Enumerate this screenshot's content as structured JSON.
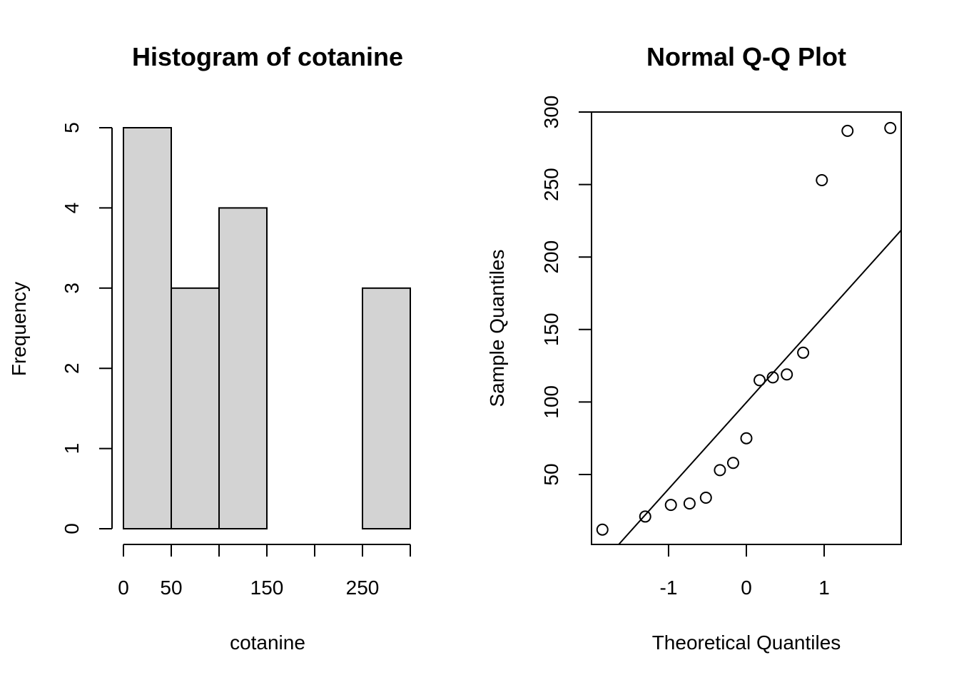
{
  "chart_data": [
    {
      "type": "bar",
      "subtype": "histogram",
      "title": "Histogram of cotanine",
      "xlabel": "cotanine",
      "ylabel": "Frequency",
      "bins": [
        {
          "from": 0,
          "to": 50,
          "count": 5
        },
        {
          "from": 50,
          "to": 100,
          "count": 3
        },
        {
          "from": 100,
          "to": 150,
          "count": 4
        },
        {
          "from": 150,
          "to": 200,
          "count": 0
        },
        {
          "from": 200,
          "to": 250,
          "count": 0
        },
        {
          "from": 250,
          "to": 300,
          "count": 3
        }
      ],
      "xlim": [
        0,
        300
      ],
      "ylim": [
        0,
        5
      ],
      "x_ticks": [
        0,
        50,
        100,
        150,
        200,
        250,
        300
      ],
      "x_tick_labels": [
        "0",
        "50",
        "",
        "150",
        "",
        "250",
        ""
      ],
      "y_ticks": [
        0,
        1,
        2,
        3,
        4,
        5
      ],
      "y_tick_labels": [
        "0",
        "1",
        "2",
        "3",
        "4",
        "5"
      ],
      "colors": {
        "bar_fill": "#d3d3d3",
        "bar_stroke": "#000000"
      },
      "grid": false
    },
    {
      "type": "scatter",
      "subtype": "normal-qq",
      "title": "Normal Q-Q Plot",
      "xlabel": "Theoretical Quantiles",
      "ylabel": "Sample Quantiles",
      "points": [
        {
          "x": -1.85,
          "y": 12
        },
        {
          "x": -1.3,
          "y": 21
        },
        {
          "x": -0.97,
          "y": 29
        },
        {
          "x": -0.73,
          "y": 30
        },
        {
          "x": -0.52,
          "y": 34
        },
        {
          "x": -0.34,
          "y": 53
        },
        {
          "x": -0.17,
          "y": 58
        },
        {
          "x": 0.0,
          "y": 75
        },
        {
          "x": 0.17,
          "y": 115
        },
        {
          "x": 0.34,
          "y": 117
        },
        {
          "x": 0.52,
          "y": 119
        },
        {
          "x": 0.73,
          "y": 134
        },
        {
          "x": 0.97,
          "y": 253
        },
        {
          "x": 1.3,
          "y": 287
        },
        {
          "x": 1.85,
          "y": 289
        }
      ],
      "reference_line": {
        "intercept": 99.7,
        "slope": 59.7
      },
      "xlim": [
        -1.99,
        1.99
      ],
      "ylim": [
        0,
        300
      ],
      "x_ticks": [
        -1,
        0,
        1
      ],
      "x_tick_labels": [
        "-1",
        "0",
        "1"
      ],
      "y_ticks": [
        50,
        100,
        150,
        200,
        250,
        300
      ],
      "y_tick_labels": [
        "50",
        "100",
        "150",
        "200",
        "250",
        "300"
      ],
      "colors": {
        "point_stroke": "#000000",
        "line": "#000000"
      },
      "grid": false
    }
  ]
}
